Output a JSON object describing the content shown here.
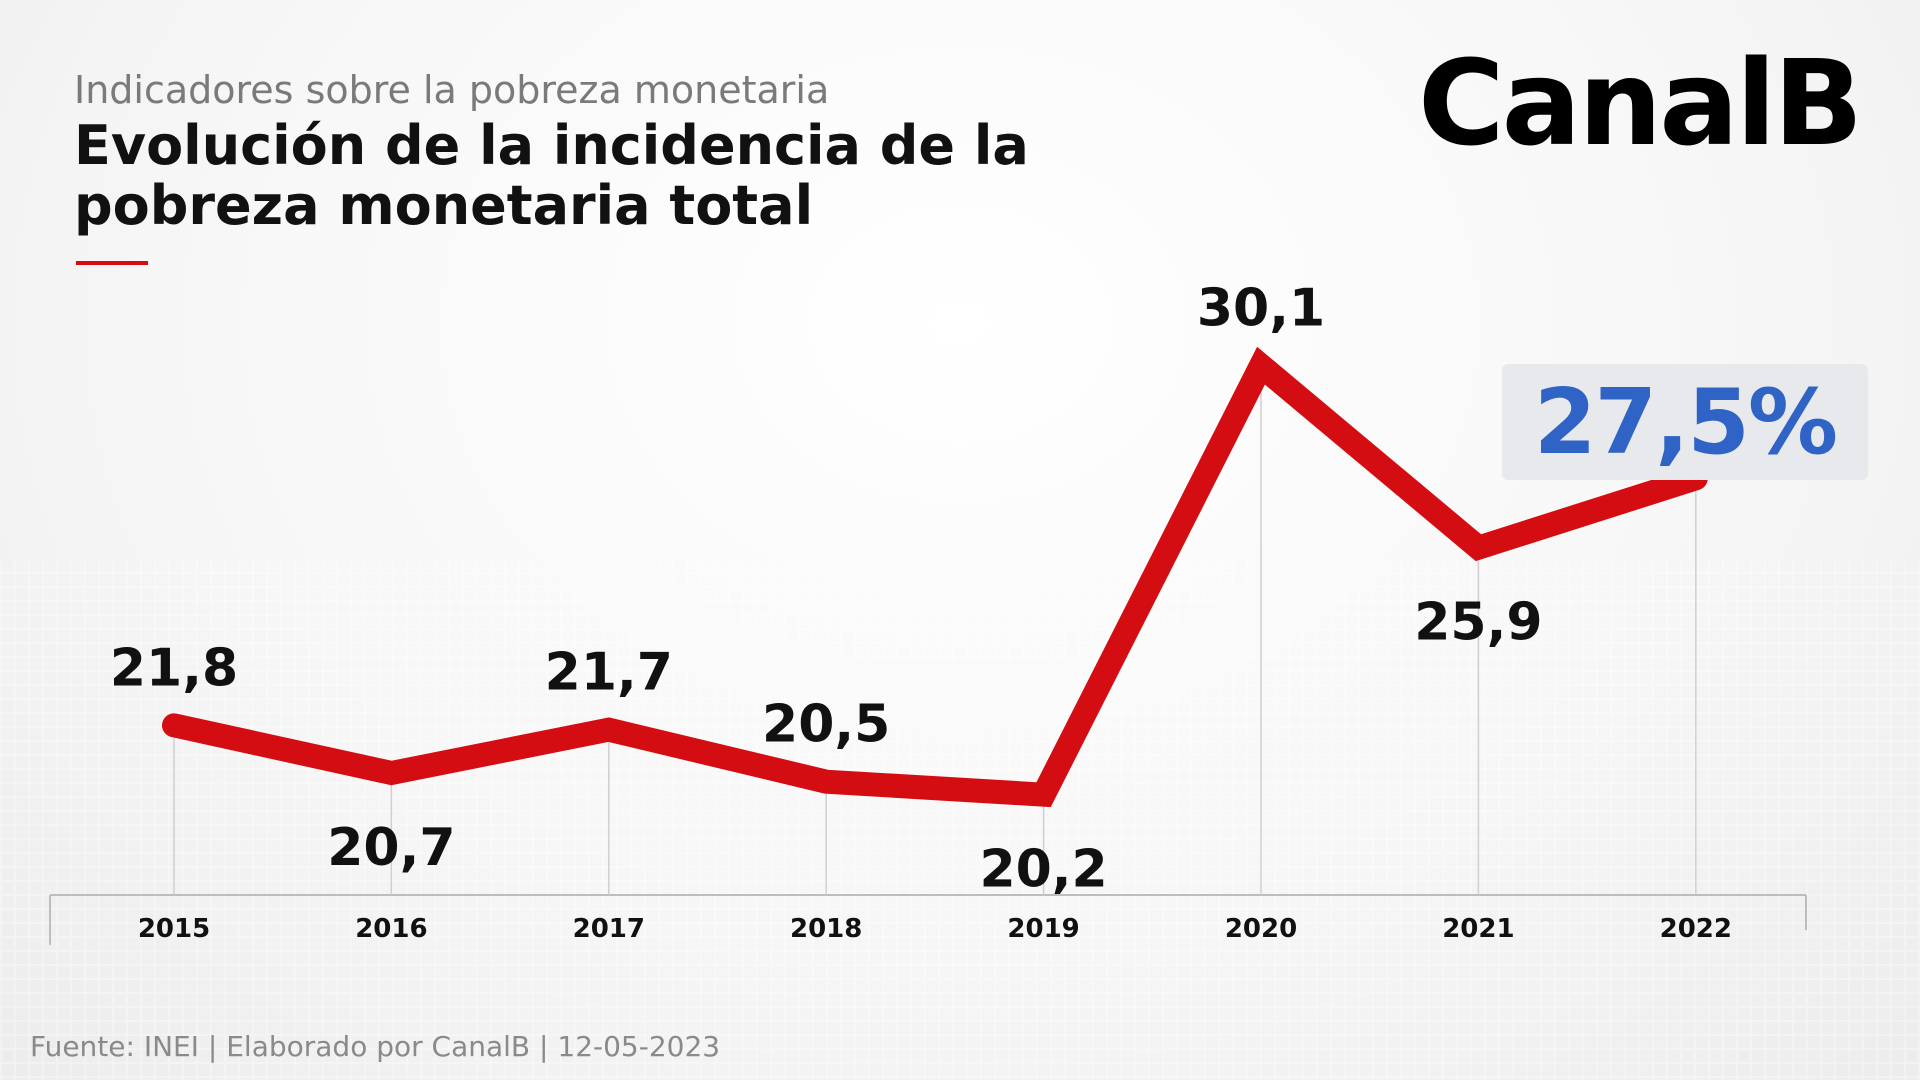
{
  "header": {
    "subtitle": "Indicadores sobre la pobreza monetaria",
    "title": "Evolución de la incidencia de la pobreza monetaria total"
  },
  "brand": {
    "logo_text": "CanalB"
  },
  "highlight": {
    "value_text": "27,5%",
    "color": "#2f63c6"
  },
  "chart_data": {
    "type": "line",
    "x": [
      "2015",
      "2016",
      "2017",
      "2018",
      "2019",
      "2020",
      "2021",
      "2022"
    ],
    "series": [
      {
        "values": [
          21.8,
          20.7,
          21.7,
          20.5,
          20.2,
          30.1,
          25.9,
          27.5
        ],
        "labels": [
          "21,8",
          "20,7",
          "21,7",
          "20,5",
          "20,2",
          "30,1",
          "25,9",
          null
        ],
        "color": "#d40d12"
      }
    ],
    "ylim": [
      15,
      33
    ],
    "grid": false,
    "legend": "none"
  },
  "footer": {
    "source": "Fuente: INEI | Elaborado por CanalB | 12-05-2023"
  }
}
